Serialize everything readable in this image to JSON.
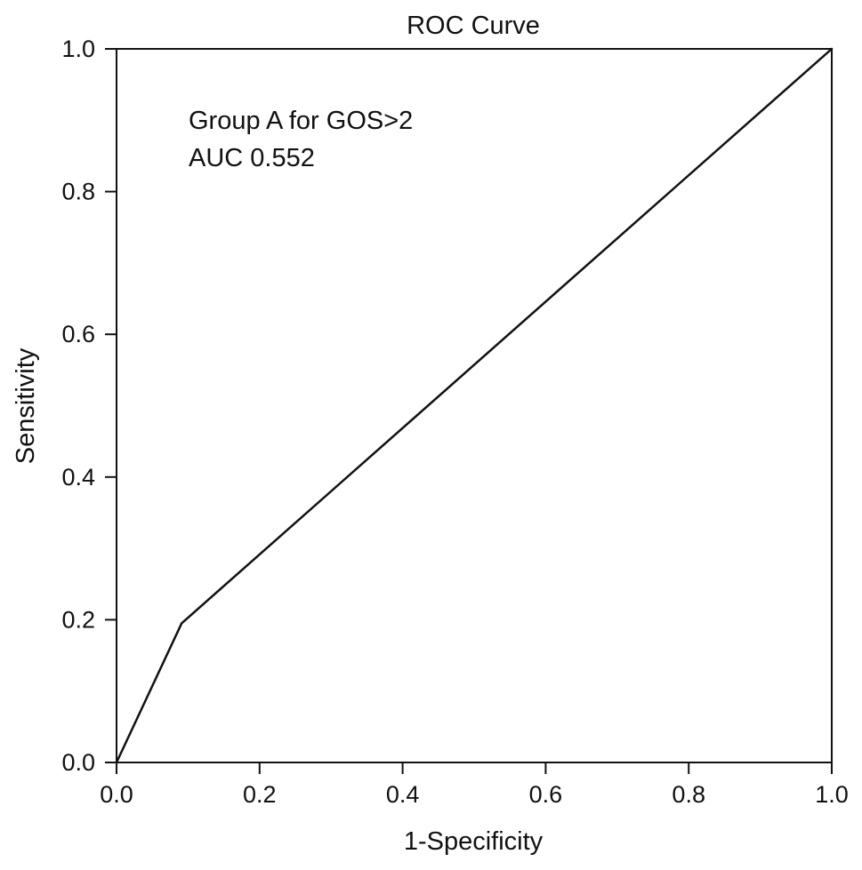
{
  "chart_data": {
    "type": "line",
    "title": "ROC Curve",
    "xlabel": "1-Specificity",
    "ylabel": "Sensitivity",
    "xlim": [
      0.0,
      1.0
    ],
    "ylim": [
      0.0,
      1.0
    ],
    "x_ticks": [
      "0.0",
      "0.2",
      "0.4",
      "0.6",
      "0.8",
      "1.0"
    ],
    "y_ticks": [
      "0.0",
      "0.2",
      "0.4",
      "0.6",
      "0.8",
      "1.0"
    ],
    "grid": false,
    "series": [
      {
        "x": [
          0.0,
          0.091,
          1.0
        ],
        "y": [
          0.0,
          0.195,
          1.0
        ]
      }
    ],
    "annotations": [
      "Group A for GOS>2",
      "AUC 0.552"
    ],
    "colors": {
      "line": "#111111",
      "frame": "#111111",
      "background": "#ffffff"
    }
  }
}
